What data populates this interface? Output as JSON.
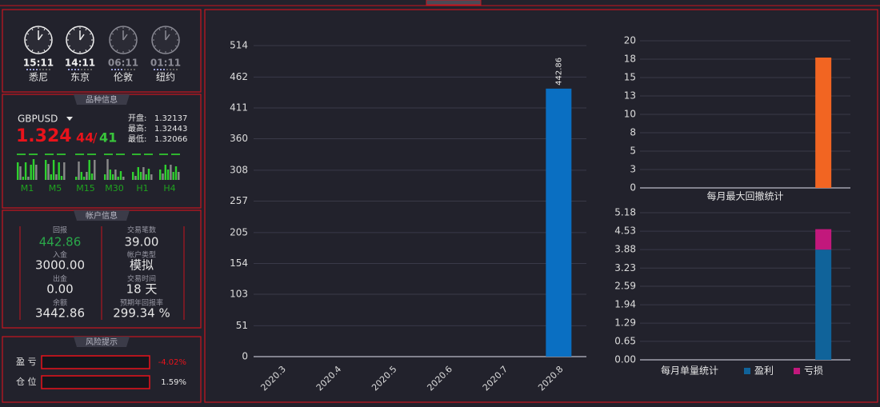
{
  "clocks": [
    {
      "time": "15:11",
      "city": "悉尼"
    },
    {
      "time": "14:11",
      "city": "东京"
    },
    {
      "time": "06:11",
      "city": "伦敦"
    },
    {
      "time": "01:11",
      "city": "纽约"
    }
  ],
  "symbol": {
    "title": "品种信息",
    "name": "GBPUSD",
    "price": "1.324",
    "pip_bid": "44",
    "separator": "/",
    "pip_ask": "41",
    "open_label": "开盘:",
    "open": "1.32137",
    "high_label": "最高:",
    "high": "1.32443",
    "low_label": "最低:",
    "low": "1.32066",
    "timeframes": [
      "M1",
      "M5",
      "M15",
      "M30",
      "H1",
      "H4"
    ]
  },
  "account": {
    "title": "帐户信息",
    "left": [
      {
        "label": "回报",
        "value": "442.86"
      },
      {
        "label": "入金",
        "value": "3000.00"
      },
      {
        "label": "出金",
        "value": "0.00"
      },
      {
        "label": "余额",
        "value": "3442.86"
      }
    ],
    "right": [
      {
        "label": "交易笔数",
        "value": "39.00"
      },
      {
        "label": "帐户类型",
        "value": "模拟"
      },
      {
        "label": "交易时间",
        "value": "18 天"
      },
      {
        "label": "预期年回报率",
        "value": "299.34 %"
      }
    ]
  },
  "risk": {
    "title": "风险提示",
    "rows": [
      {
        "label": "盈 亏",
        "value": "-4.02%"
      },
      {
        "label": "仓 位",
        "value": "1.59%"
      }
    ]
  },
  "chart_data": [
    {
      "type": "bar",
      "categories": [
        "2020.3",
        "2020.4",
        "2020.5",
        "2020.6",
        "2020.7",
        "2020.8"
      ],
      "values": [
        0,
        0,
        0,
        0,
        0,
        442.86
      ],
      "value_labels": [
        null,
        null,
        null,
        null,
        null,
        "442.86"
      ],
      "color": "#0a6fc2",
      "ylim": [
        0,
        514
      ],
      "yticks": [
        0,
        51,
        103,
        154,
        205,
        257,
        308,
        360,
        411,
        462,
        514
      ],
      "grid": true
    },
    {
      "type": "bar",
      "title": "每月最大回撤统计",
      "categories": [
        null,
        null,
        null,
        null,
        null,
        null
      ],
      "values": [
        0,
        0,
        0,
        0,
        0,
        17.72
      ],
      "color": "#f26522",
      "ylim": [
        0,
        20
      ],
      "yticks": [
        0,
        {
          "value": 2.5,
          "label": "3"
        },
        5,
        {
          "value": 7.5,
          "label": "8"
        },
        10,
        {
          "value": 12.5,
          "label": "13"
        },
        15,
        {
          "value": 17.5,
          "label": "18"
        },
        20
      ],
      "grid": true
    },
    {
      "type": "stacked-bar",
      "title": "每月单量统计",
      "categories": [
        null,
        null,
        null,
        null,
        null,
        null
      ],
      "series": [
        {
          "name": "盈利",
          "color": "#10639a",
          "values": [
            0,
            0,
            0,
            0,
            0,
            3.88
          ]
        },
        {
          "name": "亏损",
          "color": "#c2187c",
          "values": [
            0,
            0,
            0,
            0,
            0,
            0.72
          ]
        }
      ],
      "ylim": [
        0,
        5.18
      ],
      "yticks": [
        {
          "value": 0,
          "label": "0.00"
        },
        0.65,
        1.29,
        1.94,
        2.59,
        3.23,
        3.88,
        4.53,
        5.18
      ],
      "grid": true
    }
  ]
}
